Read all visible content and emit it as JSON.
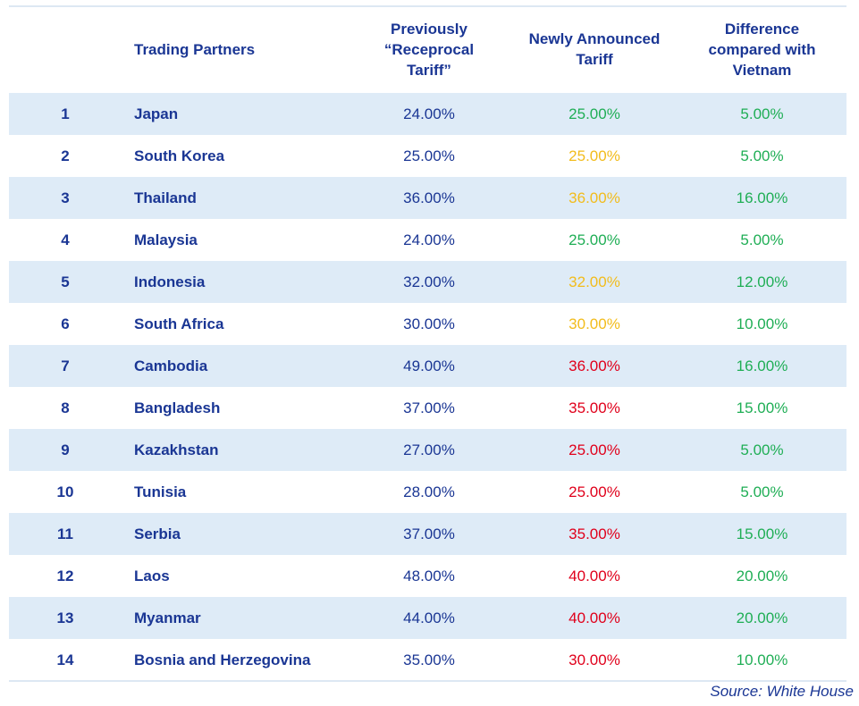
{
  "headers": {
    "partners": "Trading Partners",
    "previous": "Previously “Receprocal Tariff”",
    "new": "Newly Announced Tariff",
    "diff": "Difference compared with Vietnam"
  },
  "colors": {
    "header_text": "#1a3694",
    "row_shade": "#deebf7",
    "green": "#1fae55",
    "amber": "#f2bc1c",
    "red": "#e0001b"
  },
  "rows": [
    {
      "idx": "1",
      "name": "Japan",
      "prev": "24.00%",
      "new": "25.00%",
      "new_color": "green",
      "diff": "5.00%"
    },
    {
      "idx": "2",
      "name": "South Korea",
      "prev": "25.00%",
      "new": "25.00%",
      "new_color": "amber",
      "diff": "5.00%"
    },
    {
      "idx": "3",
      "name": "Thailand",
      "prev": "36.00%",
      "new": "36.00%",
      "new_color": "amber",
      "diff": "16.00%"
    },
    {
      "idx": "4",
      "name": "Malaysia",
      "prev": "24.00%",
      "new": "25.00%",
      "new_color": "green",
      "diff": "5.00%"
    },
    {
      "idx": "5",
      "name": "Indonesia",
      "prev": "32.00%",
      "new": "32.00%",
      "new_color": "amber",
      "diff": "12.00%"
    },
    {
      "idx": "6",
      "name": "South Africa",
      "prev": "30.00%",
      "new": "30.00%",
      "new_color": "amber",
      "diff": "10.00%"
    },
    {
      "idx": "7",
      "name": "Cambodia",
      "prev": "49.00%",
      "new": "36.00%",
      "new_color": "red",
      "diff": "16.00%"
    },
    {
      "idx": "8",
      "name": "Bangladesh",
      "prev": "37.00%",
      "new": "35.00%",
      "new_color": "red",
      "diff": "15.00%"
    },
    {
      "idx": "9",
      "name": "Kazakhstan",
      "prev": "27.00%",
      "new": "25.00%",
      "new_color": "red",
      "diff": "5.00%"
    },
    {
      "idx": "10",
      "name": "Tunisia",
      "prev": "28.00%",
      "new": "25.00%",
      "new_color": "red",
      "diff": "5.00%"
    },
    {
      "idx": "11",
      "name": "Serbia",
      "prev": "37.00%",
      "new": "35.00%",
      "new_color": "red",
      "diff": "15.00%"
    },
    {
      "idx": "12",
      "name": "Laos",
      "prev": "48.00%",
      "new": "40.00%",
      "new_color": "red",
      "diff": "20.00%"
    },
    {
      "idx": "13",
      "name": "Myanmar",
      "prev": "44.00%",
      "new": "40.00%",
      "new_color": "red",
      "diff": "20.00%"
    },
    {
      "idx": "14",
      "name": "Bosnia and Herzegovina",
      "prev": "35.00%",
      "new": "30.00%",
      "new_color": "red",
      "diff": "10.00%"
    }
  ],
  "source": "Source:  White House"
}
